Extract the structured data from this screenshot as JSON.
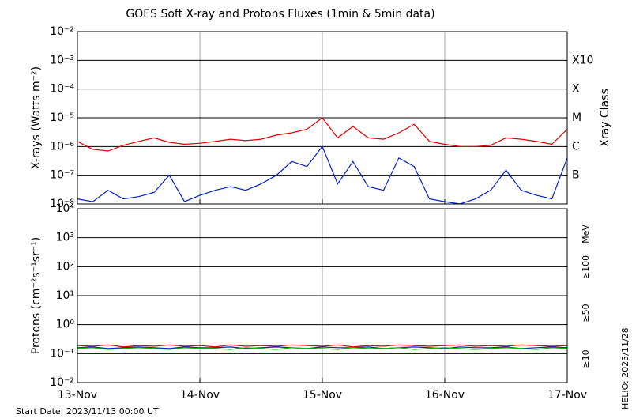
{
  "chart_data": [
    {
      "type": "line",
      "title": "GOES Soft X-ray and Protons Fluxes   (1min & 5min data)",
      "y_label": "X-rays (Watts m⁻²)",
      "y2_label": "Xray Class",
      "log_scale": true,
      "grid": true,
      "xlim": [
        0,
        4
      ],
      "xticks": [
        0,
        1,
        2,
        3,
        4
      ],
      "ylim": [
        1e-08,
        0.01
      ],
      "yticks": [
        {
          "value": 1e-08,
          "label": "10⁻⁸"
        },
        {
          "value": 1e-07,
          "label": "10⁻⁷"
        },
        {
          "value": 1e-06,
          "label": "10⁻⁶"
        },
        {
          "value": 1e-05,
          "label": "10⁻⁵"
        },
        {
          "value": 0.0001,
          "label": "10⁻⁴"
        },
        {
          "value": 0.001,
          "label": "10⁻³"
        },
        {
          "value": 0.01,
          "label": "10⁻²"
        }
      ],
      "y2lim": [
        1e-08,
        0.01
      ],
      "y2ticks": [
        {
          "value": 1e-07,
          "label": "B"
        },
        {
          "value": 1e-06,
          "label": "C"
        },
        {
          "value": 1e-05,
          "label": "M"
        },
        {
          "value": 0.0001,
          "label": "X"
        },
        {
          "value": 0.001,
          "label": "X10"
        }
      ],
      "x": [
        0,
        0.125,
        0.25,
        0.375,
        0.5,
        0.625,
        0.75,
        0.875,
        1,
        1.125,
        1.25,
        1.375,
        1.5,
        1.625,
        1.75,
        1.875,
        2,
        2.125,
        2.25,
        2.375,
        2.5,
        2.625,
        2.75,
        2.875,
        3,
        3.125,
        3.25,
        3.375,
        3.5,
        3.625,
        3.75,
        3.875,
        4
      ],
      "series": [
        {
          "color": "#e00000",
          "values": [
            1.5e-06,
            8e-07,
            7e-07,
            1.1e-06,
            1.5e-06,
            2e-06,
            1.4e-06,
            1.2e-06,
            1.3e-06,
            1.5e-06,
            1.8e-06,
            1.6e-06,
            1.8e-06,
            2.5e-06,
            3e-06,
            4e-06,
            1e-05,
            2e-06,
            5e-06,
            2e-06,
            1.8e-06,
            3e-06,
            6e-06,
            1.5e-06,
            1.2e-06,
            1e-06,
            1e-06,
            1.1e-06,
            2e-06,
            1.8e-06,
            1.5e-06,
            1.2e-06,
            4e-06
          ]
        },
        {
          "color": "#0020d0",
          "values": [
            1.5e-08,
            1.2e-08,
            3e-08,
            1.5e-08,
            1.8e-08,
            2.5e-08,
            1e-07,
            1.2e-08,
            2e-08,
            3e-08,
            4e-08,
            3e-08,
            5e-08,
            1e-07,
            3e-07,
            2e-07,
            1e-06,
            5e-08,
            3e-07,
            4e-08,
            3e-08,
            4e-07,
            2e-07,
            1.5e-08,
            1.2e-08,
            1e-08,
            1.5e-08,
            3e-08,
            1.5e-07,
            3e-08,
            2e-08,
            1.5e-08,
            4e-07
          ]
        }
      ]
    },
    {
      "type": "line",
      "y_label": "Protons (cm⁻²s⁻¹sr⁻¹)",
      "log_scale": true,
      "grid": true,
      "legend_unit": "MeV",
      "threshold": 10,
      "xlim": [
        0,
        4
      ],
      "xticks": [
        {
          "value": 0,
          "label": "13-Nov"
        },
        {
          "value": 1,
          "label": "14-Nov"
        },
        {
          "value": 2,
          "label": "15-Nov"
        },
        {
          "value": 3,
          "label": "16-Nov"
        },
        {
          "value": 4,
          "label": "17-Nov"
        }
      ],
      "ylim": [
        0.01,
        10000
      ],
      "yticks": [
        {
          "value": 0.01,
          "label": "10⁻²"
        },
        {
          "value": 0.1,
          "label": "10⁻¹"
        },
        {
          "value": 1,
          "label": "10⁰"
        },
        {
          "value": 10,
          "label": "10¹"
        },
        {
          "value": 100,
          "label": "10²"
        },
        {
          "value": 1000,
          "label": "10³"
        },
        {
          "value": 10000,
          "label": "10⁴"
        }
      ],
      "x": [
        0,
        0.125,
        0.25,
        0.375,
        0.5,
        0.625,
        0.75,
        0.875,
        1,
        1.125,
        1.25,
        1.375,
        1.5,
        1.625,
        1.75,
        1.875,
        2,
        2.125,
        2.25,
        2.375,
        2.5,
        2.625,
        2.75,
        2.875,
        3,
        3.125,
        3.25,
        3.375,
        3.5,
        3.625,
        3.75,
        3.875,
        4
      ],
      "series": [
        {
          "name": "≥10",
          "color": "#e00000",
          "values": [
            0.19,
            0.18,
            0.2,
            0.17,
            0.19,
            0.18,
            0.2,
            0.18,
            0.19,
            0.17,
            0.2,
            0.18,
            0.19,
            0.18,
            0.2,
            0.19,
            0.18,
            0.2,
            0.17,
            0.19,
            0.18,
            0.2,
            0.19,
            0.18,
            0.19,
            0.2,
            0.18,
            0.19,
            0.18,
            0.2,
            0.19,
            0.18,
            0.19
          ]
        },
        {
          "name": "≥50",
          "color": "#0020d0",
          "values": [
            0.16,
            0.17,
            0.15,
            0.16,
            0.17,
            0.16,
            0.15,
            0.17,
            0.16,
            0.16,
            0.17,
            0.15,
            0.16,
            0.17,
            0.16,
            0.15,
            0.17,
            0.16,
            0.16,
            0.17,
            0.15,
            0.16,
            0.17,
            0.16,
            0.15,
            0.17,
            0.16,
            0.16,
            0.17,
            0.15,
            0.16,
            0.17,
            0.16
          ]
        },
        {
          "name": "≥100",
          "color": "#00c000",
          "values": [
            0.15,
            0.16,
            0.14,
            0.15,
            0.16,
            0.15,
            0.14,
            0.16,
            0.15,
            0.15,
            0.14,
            0.16,
            0.15,
            0.14,
            0.16,
            0.15,
            0.15,
            0.14,
            0.16,
            0.15,
            0.15,
            0.16,
            0.14,
            0.15,
            0.16,
            0.15,
            0.14,
            0.15,
            0.16,
            0.15,
            0.14,
            0.16,
            0.15
          ]
        }
      ]
    }
  ],
  "start_date_label": "Start Date: 2023/11/13 00:00 UT",
  "helio_label": "HELIO: 2023/11/28"
}
